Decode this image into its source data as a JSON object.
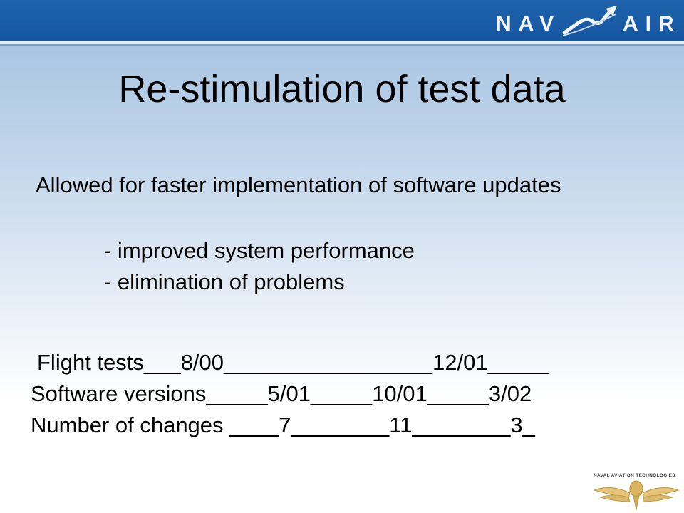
{
  "header": {
    "logo_left": "NAV",
    "logo_right": "AIR",
    "colors": {
      "bar": "#1656a0",
      "logo_text": "#f2f5fa"
    },
    "logo_icon": "navair-swoosh-logo"
  },
  "slide": {
    "title": "Re-stimulation of test data",
    "paragraph": "Allowed for faster implementation of software updates",
    "bullets": [
      "- improved system performance",
      "- elimination of problems"
    ],
    "rows": [
      "Flight tests___8/00_________________12/01_____",
      "Software versions_____5/01_____10/01_____3/02",
      "Number of changes ____7________11________3_"
    ]
  },
  "footer": {
    "label": "NAVAL AVIATION TECHNOLOGIES",
    "emblem": "naval-aviator-wings-emblem"
  }
}
